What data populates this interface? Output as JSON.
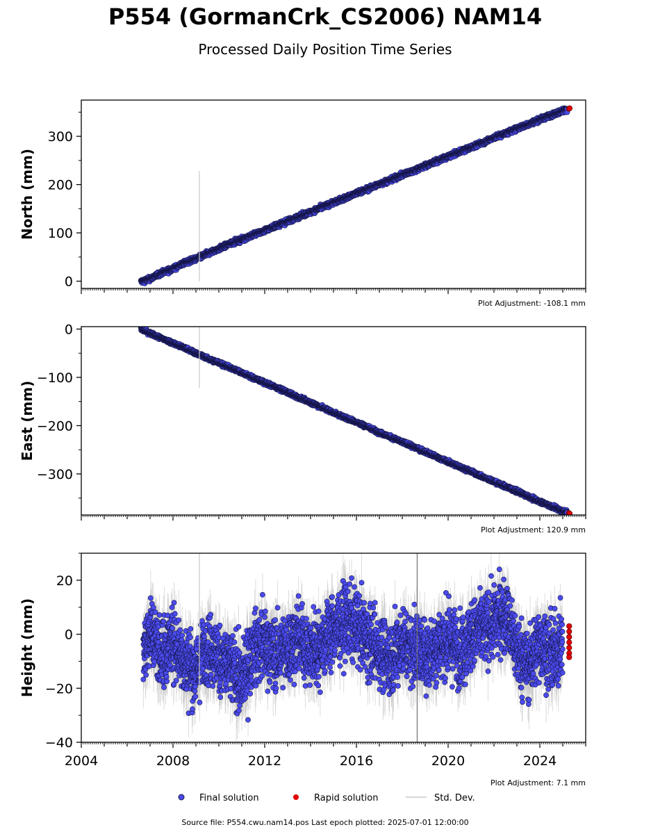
{
  "chart_data": {
    "type": "scatter",
    "title": "P554 (GormanCrk_CS2006) NAM14",
    "subtitle": "Processed Daily Position Time Series",
    "x_range": [
      2004.0,
      2026.0
    ],
    "x_tick_labels": [
      "2004",
      "2008",
      "2012",
      "2016",
      "2020",
      "2024"
    ],
    "panels": [
      {
        "key": "north",
        "ylabel": "North (mm)",
        "ylim": [
          -15,
          375
        ],
        "yticks": [
          0,
          100,
          200,
          300
        ],
        "tick_labels": [
          "0",
          "100",
          "200",
          "300"
        ],
        "adjustment_label": "Plot Adjustment: -108.1 mm",
        "trend": {
          "start_x": 2006.6,
          "start_y": 0,
          "end_x": 2025.25,
          "end_y": 358
        },
        "noise_mm": 2.5,
        "final_points": [
          [
            2006.6,
            -1
          ],
          [
            2007.0,
            5
          ],
          [
            2007.5,
            17
          ],
          [
            2008.0,
            26
          ],
          [
            2008.5,
            38
          ],
          [
            2009.0,
            46
          ],
          [
            2009.5,
            57
          ],
          [
            2010.0,
            67
          ],
          [
            2010.5,
            78
          ],
          [
            2011.0,
            86
          ],
          [
            2011.5,
            96
          ],
          [
            2012.0,
            105
          ],
          [
            2012.5,
            115
          ],
          [
            2013.0,
            124
          ],
          [
            2013.5,
            134
          ],
          [
            2014.0,
            143
          ],
          [
            2014.5,
            153
          ],
          [
            2015.0,
            163
          ],
          [
            2015.5,
            172
          ],
          [
            2016.0,
            182
          ],
          [
            2016.5,
            191
          ],
          [
            2017.0,
            201
          ],
          [
            2017.5,
            210
          ],
          [
            2018.0,
            220
          ],
          [
            2018.5,
            229
          ],
          [
            2019.0,
            239
          ],
          [
            2019.5,
            249
          ],
          [
            2020.0,
            258
          ],
          [
            2020.5,
            268
          ],
          [
            2021.0,
            277
          ],
          [
            2021.5,
            287
          ],
          [
            2022.0,
            297
          ],
          [
            2022.5,
            306
          ],
          [
            2023.0,
            316
          ],
          [
            2023.5,
            325
          ],
          [
            2024.0,
            335
          ],
          [
            2024.5,
            344
          ],
          [
            2025.0,
            353
          ],
          [
            2025.2,
            357
          ]
        ],
        "rapid_points": [
          [
            2025.27,
            357
          ],
          [
            2025.3,
            358
          ]
        ],
        "stddev_spikes": [
          {
            "x": 2009.15,
            "y_low": 0,
            "y_high": 228,
            "color": "#c8c8c8"
          }
        ]
      },
      {
        "key": "east",
        "ylabel": "East (mm)",
        "ylim": [
          -385,
          5
        ],
        "yticks": [
          0,
          -100,
          -200,
          -300
        ],
        "tick_labels": [
          "0",
          "−100",
          "−200",
          "−300"
        ],
        "adjustment_label": "Plot Adjustment: 120.9 mm",
        "trend": {
          "start_x": 2006.6,
          "start_y": 0,
          "end_x": 2025.25,
          "end_y": -381
        },
        "noise_mm": 2.0,
        "final_points": [
          [
            2006.6,
            0
          ],
          [
            2007.0,
            -9
          ],
          [
            2007.5,
            -19
          ],
          [
            2008.0,
            -29
          ],
          [
            2008.5,
            -39
          ],
          [
            2009.0,
            -50
          ],
          [
            2009.5,
            -60
          ],
          [
            2010.0,
            -70
          ],
          [
            2010.5,
            -80
          ],
          [
            2011.0,
            -90
          ],
          [
            2011.5,
            -101
          ],
          [
            2012.0,
            -111
          ],
          [
            2012.5,
            -121
          ],
          [
            2013.0,
            -131
          ],
          [
            2013.5,
            -142
          ],
          [
            2014.0,
            -152
          ],
          [
            2014.5,
            -162
          ],
          [
            2015.0,
            -173
          ],
          [
            2015.5,
            -183
          ],
          [
            2016.0,
            -193
          ],
          [
            2016.5,
            -203
          ],
          [
            2017.0,
            -214
          ],
          [
            2017.5,
            -224
          ],
          [
            2018.0,
            -234
          ],
          [
            2018.5,
            -244
          ],
          [
            2019.0,
            -254
          ],
          [
            2019.5,
            -265
          ],
          [
            2020.0,
            -275
          ],
          [
            2020.5,
            -285
          ],
          [
            2021.0,
            -295
          ],
          [
            2021.5,
            -306
          ],
          [
            2022.0,
            -316
          ],
          [
            2022.5,
            -326
          ],
          [
            2023.0,
            -336
          ],
          [
            2023.5,
            -347
          ],
          [
            2024.0,
            -357
          ],
          [
            2024.5,
            -367
          ],
          [
            2025.0,
            -377
          ],
          [
            2025.2,
            -380
          ]
        ],
        "rapid_points": [
          [
            2025.27,
            -381
          ],
          [
            2025.3,
            -382
          ]
        ],
        "stddev_spikes": [
          {
            "x": 2009.15,
            "y_low": -122,
            "y_high": 5,
            "color": "#c8c8c8"
          }
        ]
      },
      {
        "key": "height",
        "ylabel": "Height (mm)",
        "ylim": [
          -40,
          30
        ],
        "yticks": [
          -40,
          -20,
          0,
          20
        ],
        "tick_labels": [
          "−40",
          "−20",
          "0",
          "20"
        ],
        "adjustment_label": "Plot Adjustment: 7.1 mm",
        "trend": {
          "start_x": 2006.6,
          "start_y": -4,
          "end_x": 2025.25,
          "end_y": -4
        },
        "noise_mm": 6.5,
        "final_points": [
          [
            2006.7,
            -6
          ],
          [
            2007.0,
            2
          ],
          [
            2007.5,
            -8
          ],
          [
            2008.0,
            -2
          ],
          [
            2008.5,
            -10
          ],
          [
            2009.0,
            -14
          ],
          [
            2009.5,
            -4
          ],
          [
            2010.0,
            -9
          ],
          [
            2010.5,
            -12
          ],
          [
            2011.0,
            -18
          ],
          [
            2011.5,
            -6
          ],
          [
            2012.0,
            -3
          ],
          [
            2012.5,
            -8
          ],
          [
            2013.0,
            -5
          ],
          [
            2013.5,
            -1
          ],
          [
            2014.0,
            -7
          ],
          [
            2014.5,
            -3
          ],
          [
            2015.0,
            2
          ],
          [
            2015.5,
            5
          ],
          [
            2016.0,
            3
          ],
          [
            2016.5,
            -2
          ],
          [
            2017.0,
            -6
          ],
          [
            2017.5,
            -9
          ],
          [
            2018.0,
            -3
          ],
          [
            2018.5,
            -5
          ],
          [
            2019.0,
            -8
          ],
          [
            2019.5,
            -4
          ],
          [
            2020.0,
            -2
          ],
          [
            2020.5,
            -6
          ],
          [
            2021.0,
            -1
          ],
          [
            2021.5,
            2
          ],
          [
            2022.0,
            4
          ],
          [
            2022.5,
            8
          ],
          [
            2023.0,
            -6
          ],
          [
            2023.5,
            -12
          ],
          [
            2024.0,
            -3
          ],
          [
            2024.5,
            -8
          ],
          [
            2025.0,
            -4
          ]
        ],
        "rapid_points": [
          [
            2025.28,
            3
          ],
          [
            2025.28,
            1
          ],
          [
            2025.28,
            -1
          ],
          [
            2025.28,
            -3
          ],
          [
            2025.28,
            -5
          ],
          [
            2025.28,
            -7
          ],
          [
            2025.28,
            -8.5
          ]
        ],
        "stddev_spikes": [
          {
            "x": 2009.15,
            "y_low": -20,
            "y_high": 30,
            "color": "#c8c8c8"
          },
          {
            "x": 2018.65,
            "y_low": -40,
            "y_high": 30,
            "color": "#707070"
          }
        ]
      }
    ],
    "legend": {
      "placement": "bottom-center",
      "entries": [
        {
          "label": "Final solution",
          "color": "#4b4bf0",
          "kind": "marker"
        },
        {
          "label": "Rapid solution",
          "color": "#e00000",
          "kind": "marker"
        },
        {
          "label": "Std. Dev.",
          "color": "#c8c8c8",
          "kind": "line"
        }
      ]
    },
    "source_note": "Source file: P554.cwu.nam14.pos  Last epoch plotted: 2025-07-01 12:00:00",
    "colors": {
      "final": "#4b4bf0",
      "final_edge": "#151545",
      "rapid": "#e00000",
      "stddev": "#c8c8c8",
      "axis": "#000000"
    }
  }
}
